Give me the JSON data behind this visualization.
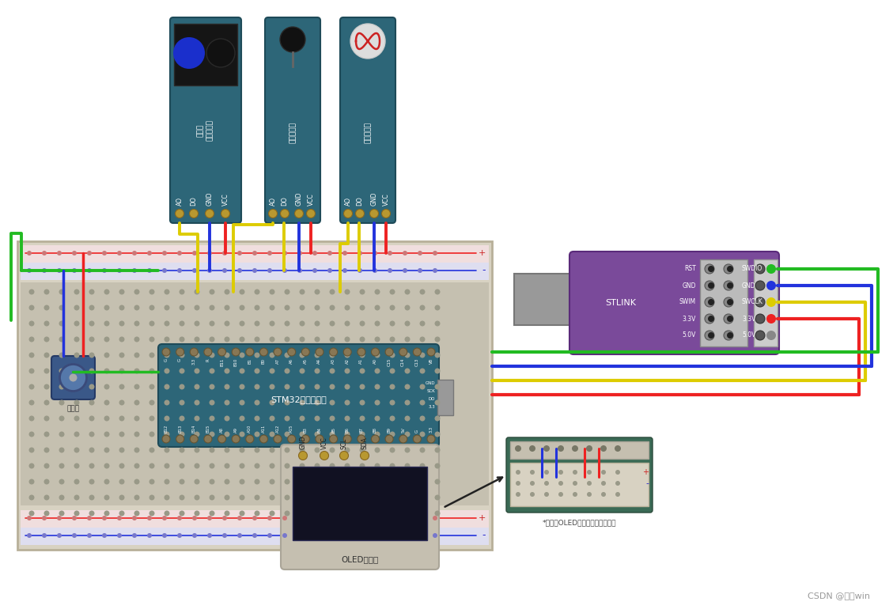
{
  "bg_color": "#ffffff",
  "sensor_color": "#2d6678",
  "sensor_border": "#1e4a58",
  "breadboard_color": "#d8d3c5",
  "stm32_color": "#2d6678",
  "stm32_border": "#1e4a58",
  "stlink_color": "#7a4a9a",
  "stlink_border": "#5a2a7a",
  "oled_bg": "#111122",
  "wire_red": "#ee2222",
  "wire_blue": "#2233dd",
  "wire_yellow": "#ddcc00",
  "wire_green": "#22bb22",
  "sensor1_label_1": "反射式",
  "sensor1_label_2": "红外传感器",
  "sensor2_label": "热敏传感器",
  "sensor3_label": "光敏传感器",
  "stm32_label": "STM32最小系统板",
  "stlink_label": "STLINK",
  "oled_label": "OLED显示屏",
  "potentiometer_label": "电位器",
  "note_label": "*此图为OLED下方被遮住的接线图",
  "watermark": "CSDN @松松win",
  "stl_pins_left": [
    "RST",
    "GND",
    "SWIM",
    "3.3V",
    "5.0V"
  ],
  "stl_pins_right": [
    "SWDIO",
    "GND",
    "SWCLK",
    "3.3V",
    "5.0V"
  ],
  "stm32_top_pins": [
    "G",
    "G",
    "3.3",
    "R",
    "B11",
    "B10",
    "B1",
    "B0",
    "A7",
    "A6",
    "A5",
    "A4",
    "A3",
    "A2",
    "A1",
    "A0",
    "C15",
    "C14",
    "C13",
    "VB"
  ],
  "stm32_bot_pins": [
    "B12",
    "B13",
    "B14",
    "B15",
    "A8",
    "A9",
    "A10",
    "A11",
    "A12",
    "A15",
    "B3",
    "B4",
    "B5",
    "B6",
    "B7",
    "B8",
    "B9",
    "5V",
    "G",
    "3.3"
  ],
  "oled_pins": [
    "GND",
    "VCC",
    "SCL",
    "SDA"
  ]
}
